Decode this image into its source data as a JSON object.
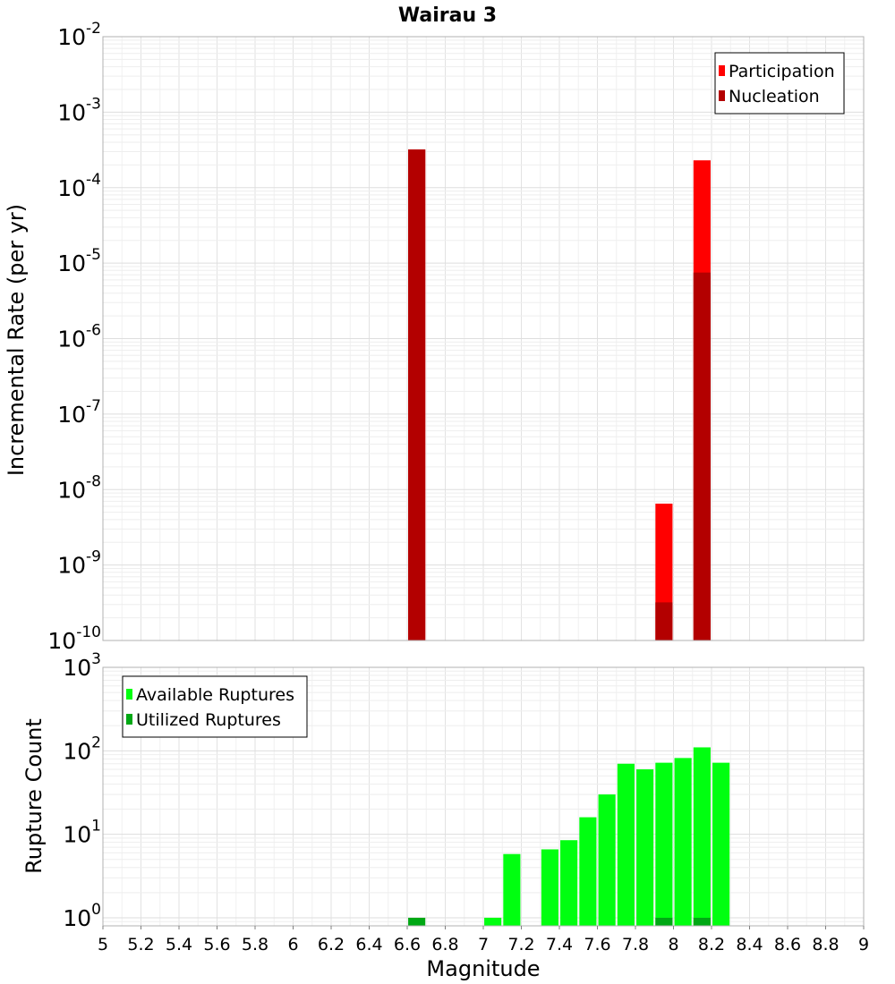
{
  "title": "Wairau 3",
  "xlabel": "Magnitude",
  "x_ticks": [
    "5",
    "5.2",
    "5.4",
    "5.6",
    "5.8",
    "6",
    "6.2",
    "6.4",
    "6.6",
    "6.8",
    "7",
    "7.2",
    "7.4",
    "7.6",
    "7.8",
    "8",
    "8.2",
    "8.4",
    "8.6",
    "8.8",
    "9"
  ],
  "colors": {
    "participation": "#ff0000",
    "nucleation": "#b30000",
    "available": "#00ff10",
    "utilized": "#00a814"
  },
  "chart_data": [
    {
      "type": "bar",
      "title": "Wairau 3",
      "xlabel": "Magnitude",
      "ylabel": "Incremental Rate (per yr)",
      "xlim": [
        5,
        9
      ],
      "ylim": [
        1e-10,
        0.01
      ],
      "yscale": "log",
      "grid": true,
      "legend": "top-right",
      "y_ticks": [
        {
          "base": "10",
          "exp": "-2",
          "value": 0.01
        },
        {
          "base": "10",
          "exp": "-3",
          "value": 0.001
        },
        {
          "base": "10",
          "exp": "-4",
          "value": 0.0001
        },
        {
          "base": "10",
          "exp": "-5",
          "value": 1e-05
        },
        {
          "base": "10",
          "exp": "-6",
          "value": 1e-06
        },
        {
          "base": "10",
          "exp": "-7",
          "value": 1e-07
        },
        {
          "base": "10",
          "exp": "-8",
          "value": 1e-08
        },
        {
          "base": "10",
          "exp": "-9",
          "value": 1e-09
        },
        {
          "base": "10",
          "exp": "-10",
          "value": 1e-10
        }
      ],
      "series": [
        {
          "name": "Participation",
          "color": "#ff0000",
          "x": [
            6.65,
            7.95,
            8.15
          ],
          "values": [
            0.00032,
            6.5e-09,
            0.00023
          ]
        },
        {
          "name": "Nucleation",
          "color": "#b30000",
          "x": [
            6.65,
            7.95,
            8.15
          ],
          "values": [
            0.00032,
            3.2e-10,
            7.5e-06
          ]
        }
      ]
    },
    {
      "type": "bar",
      "xlabel": "Magnitude",
      "ylabel": "Rupture Count",
      "xlim": [
        5,
        9
      ],
      "ylim": [
        0.8,
        1000
      ],
      "yscale": "log",
      "grid": true,
      "legend": "top-left",
      "y_ticks": [
        {
          "base": "10",
          "exp": "3",
          "value": 1000
        },
        {
          "base": "10",
          "exp": "2",
          "value": 100
        },
        {
          "base": "10",
          "exp": "1",
          "value": 10
        },
        {
          "base": "10",
          "exp": "0",
          "value": 1
        }
      ],
      "series": [
        {
          "name": "Available Ruptures",
          "color": "#00ff10",
          "x": [
            7.05,
            7.15,
            7.35,
            7.45,
            7.55,
            7.65,
            7.75,
            7.85,
            7.95,
            8.05,
            8.15,
            8.25
          ],
          "values": [
            1,
            5.8,
            6.6,
            8.5,
            16,
            30,
            70,
            60,
            72,
            82,
            110,
            72
          ]
        },
        {
          "name": "Utilized Ruptures",
          "color": "#00a814",
          "x": [
            6.65,
            7.95,
            8.15
          ],
          "values": [
            1,
            1,
            1
          ]
        }
      ]
    }
  ]
}
